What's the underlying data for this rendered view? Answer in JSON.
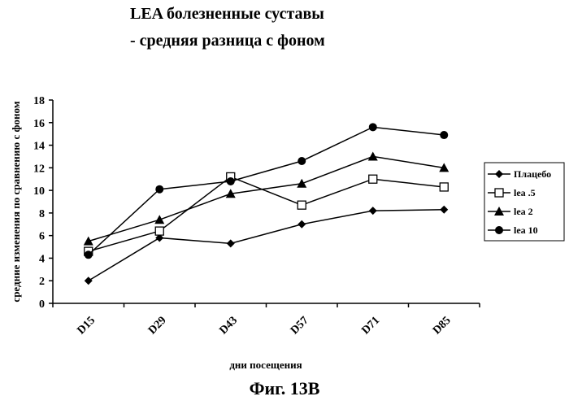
{
  "chart_data": {
    "type": "line",
    "title": "LEA болезненные суставы",
    "subtitle": "- средняя разница с фоном",
    "xlabel": "дни посещения",
    "ylabel": "средние изменения по сравнению с фоном",
    "categories": [
      "D15",
      "D29",
      "D43",
      "D57",
      "D71",
      "D85"
    ],
    "ylim": [
      0,
      18
    ],
    "yticks": [
      0,
      2,
      4,
      6,
      8,
      10,
      12,
      14,
      16,
      18
    ],
    "grid": false,
    "legend_position": "right",
    "series": [
      {
        "name": "Плацебо",
        "marker": "diamond",
        "values": [
          2.0,
          5.8,
          5.3,
          7.0,
          8.2,
          8.3
        ]
      },
      {
        "name": "lea .5",
        "marker": "square",
        "values": [
          4.6,
          6.4,
          11.2,
          8.7,
          11.0,
          10.3
        ]
      },
      {
        "name": "lea 2",
        "marker": "triangle",
        "values": [
          5.5,
          7.4,
          9.7,
          10.6,
          13.0,
          12.0
        ]
      },
      {
        "name": "lea 10",
        "marker": "circle",
        "values": [
          4.3,
          10.1,
          10.8,
          12.6,
          15.6,
          14.9
        ]
      }
    ]
  },
  "caption": "Фиг. 13B",
  "colors": {
    "line": "#000000",
    "background": "#ffffff"
  }
}
